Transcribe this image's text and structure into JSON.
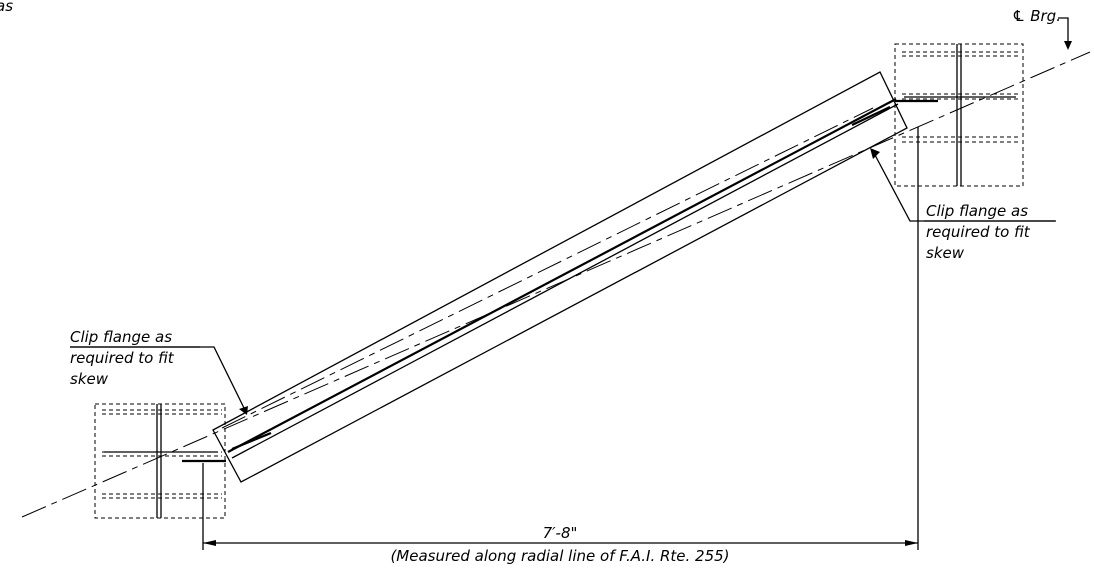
{
  "drawing": {
    "corner_fragment": "as",
    "centerline_label": "℄ Brg.",
    "callout_right": {
      "line1": "Clip flange as",
      "line2": "required to fit",
      "line3": "skew"
    },
    "callout_left": {
      "line1": "Clip flange as",
      "line2": "required to fit",
      "line3": "skew"
    },
    "dimension": {
      "value": "7′-8\"",
      "note": "(Measured along radial line of F.A.I. Rte. 255)"
    }
  }
}
